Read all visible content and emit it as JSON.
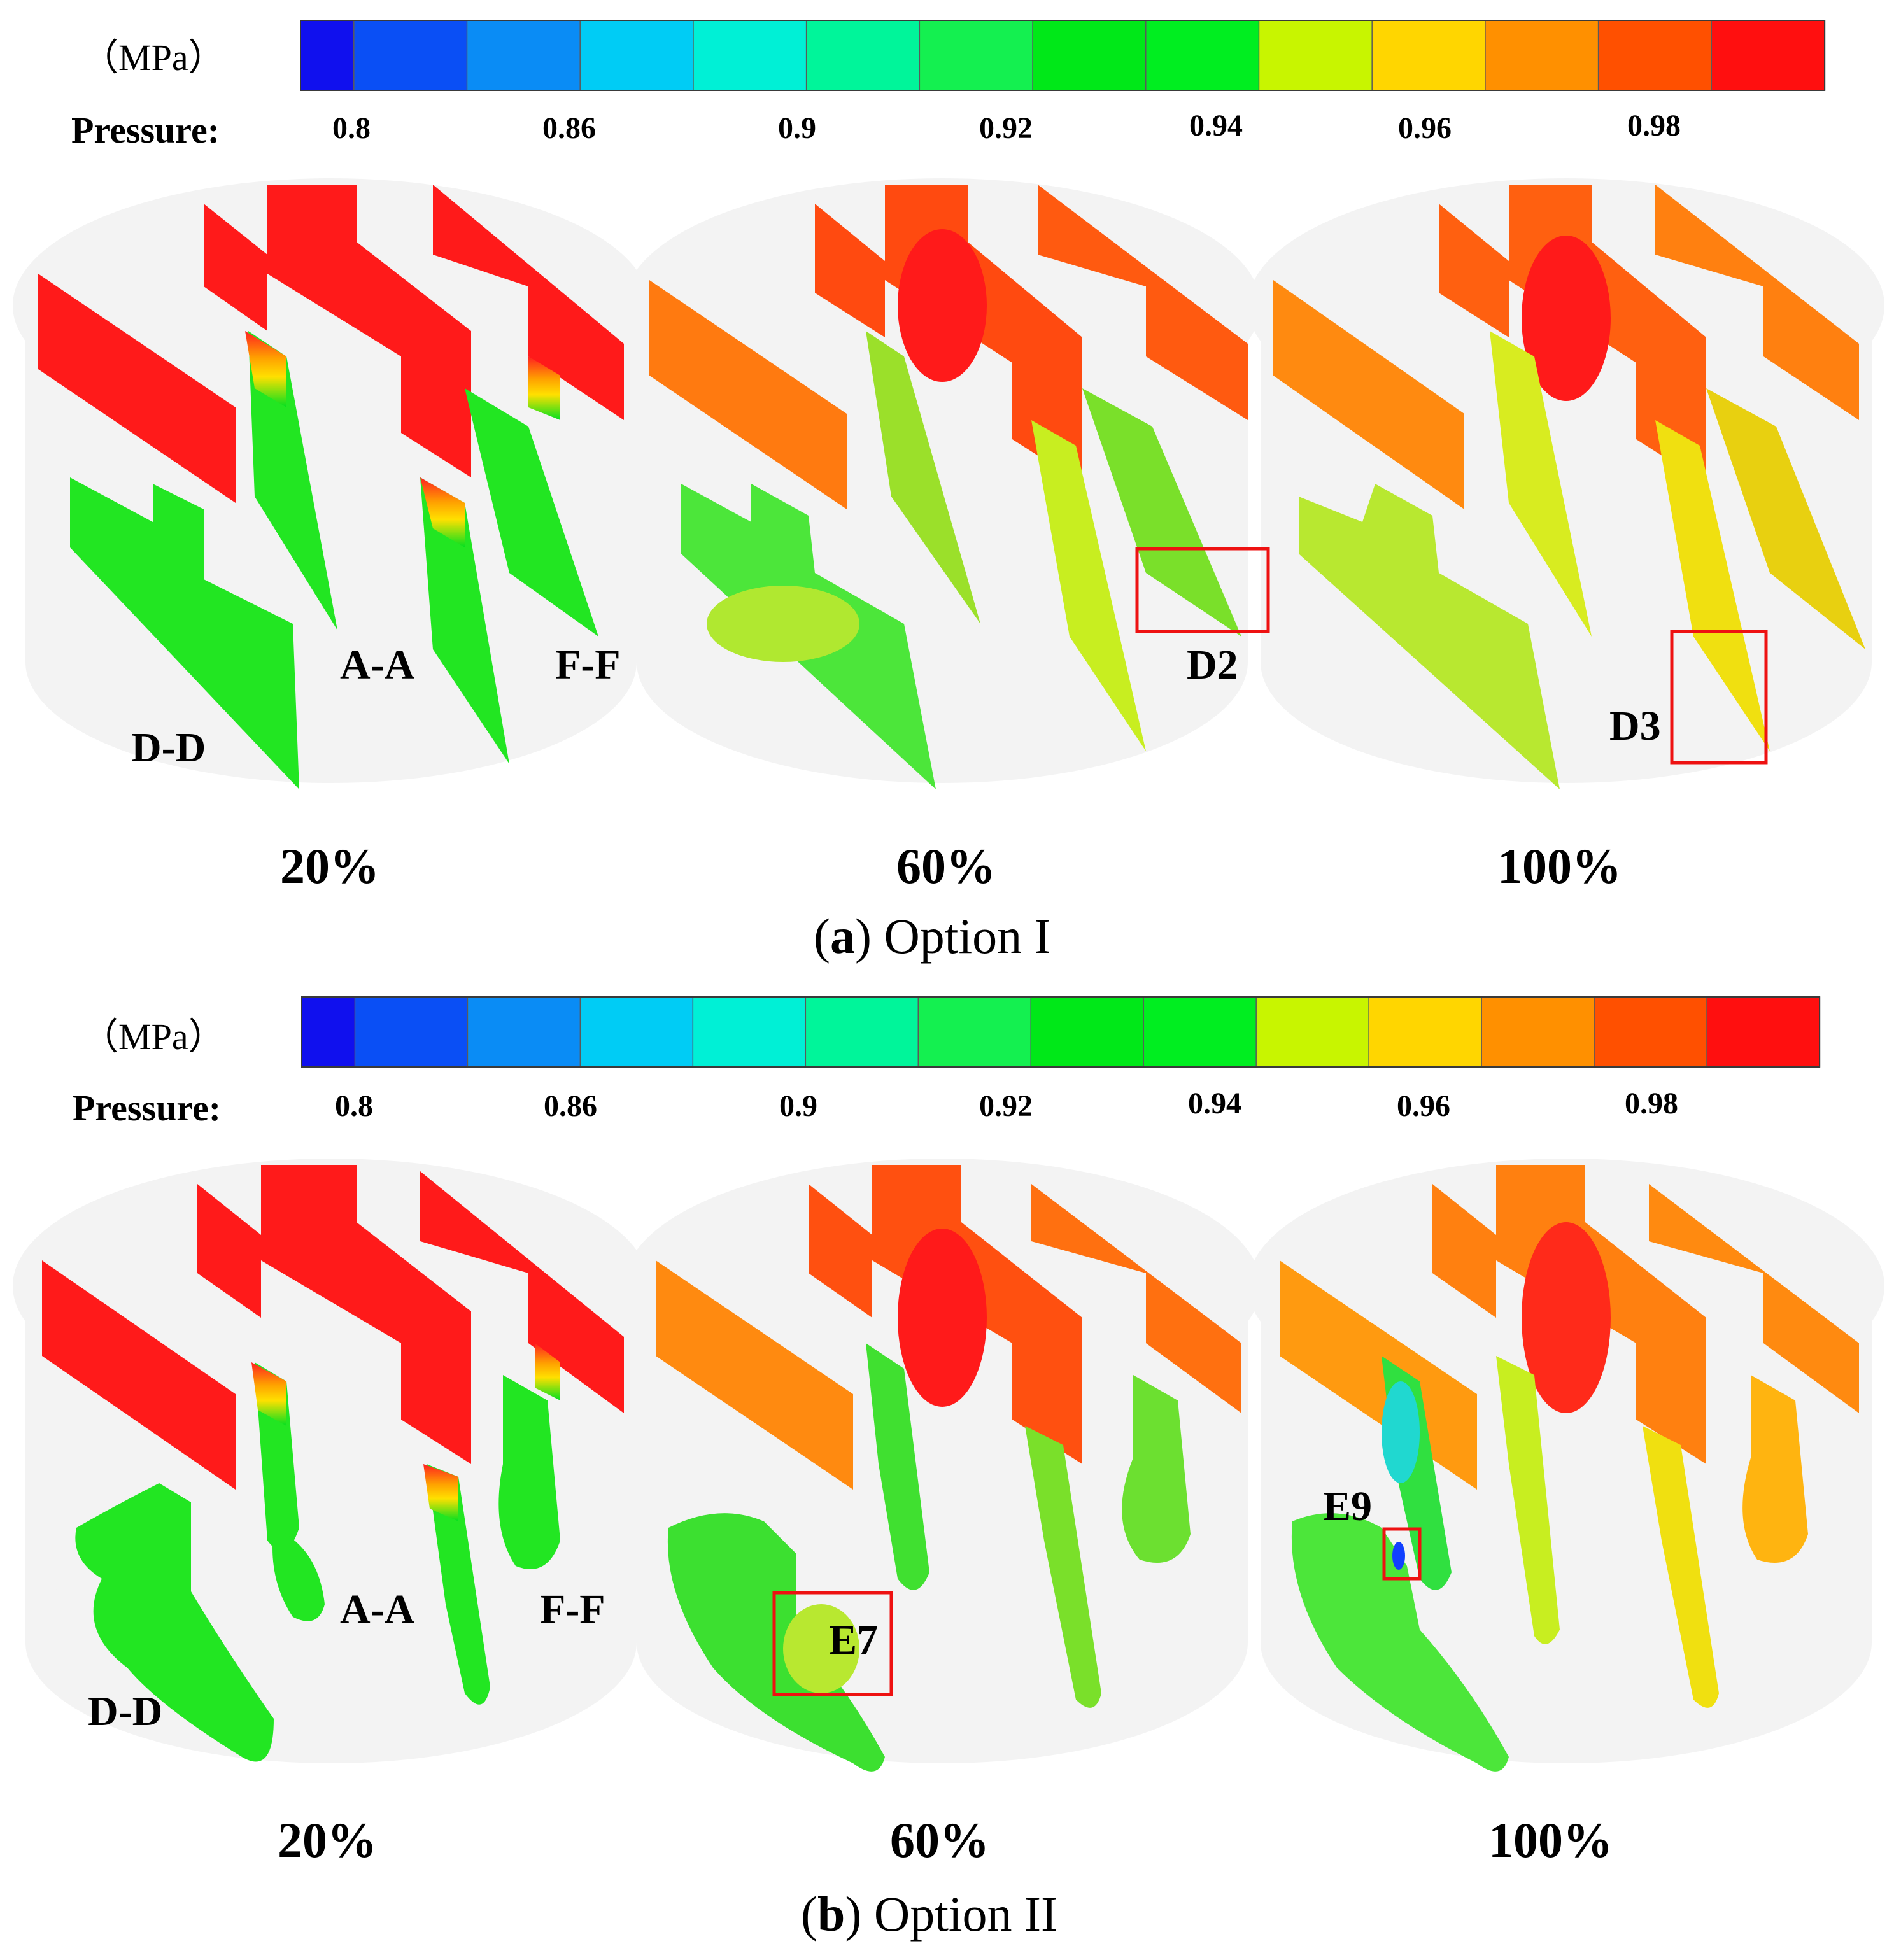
{
  "legend": {
    "unit": "（MPa）",
    "title": "Pressure:",
    "ticks": [
      "0.8",
      "0.86",
      "0.9",
      "0.92",
      "0.94",
      "0.96",
      "0.98"
    ],
    "colors": [
      "#1010ee",
      "#0a4ff5",
      "#0a8cf5",
      "#00ccf5",
      "#00f0d6",
      "#00f59a",
      "#14f050",
      "#00e818",
      "#00ee20",
      "#c8f500",
      "#ffd600",
      "#ff9000",
      "#ff5000",
      "#ff0f0f"
    ]
  },
  "panels": [
    {
      "caption_letter": "a",
      "caption_text": "Option I",
      "stages": [
        "20%",
        "60%",
        "100%"
      ],
      "section_labels": [
        "A-A",
        "F-F",
        "D-D"
      ],
      "markers": [
        "D2",
        "D3"
      ]
    },
    {
      "caption_letter": "b",
      "caption_text": "Option II",
      "stages": [
        "20%",
        "60%",
        "100%"
      ],
      "section_labels": [
        "A-A",
        "F-F",
        "D-D"
      ],
      "markers": [
        "E7",
        "E9"
      ]
    }
  ]
}
